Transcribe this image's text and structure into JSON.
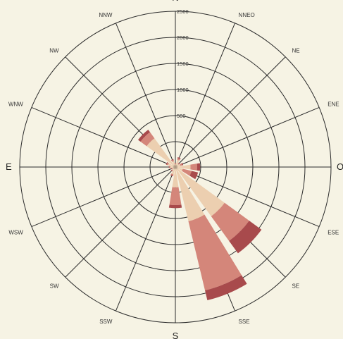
{
  "chart_data": {
    "type": "wind-rose",
    "directions": [
      "N",
      "NNEO",
      "NE",
      "ENE",
      "O",
      "ESE",
      "SE",
      "SSE",
      "S",
      "SSW",
      "SW",
      "WSW",
      "E",
      "WNW",
      "NW",
      "NNW"
    ],
    "radial_ticks": [
      "500",
      "1000",
      "1500",
      "2000",
      "2500"
    ],
    "series": [
      {
        "values": [
          50,
          150,
          80,
          100,
          300,
          150,
          1200,
          1100,
          400,
          150,
          80,
          60,
          100,
          150,
          700,
          120
        ]
      },
      {
        "values": [
          20,
          30,
          20,
          40,
          130,
          180,
          600,
          1400,
          350,
          30,
          20,
          20,
          20,
          30,
          150,
          30
        ]
      },
      {
        "values": [
          10,
          20,
          10,
          20,
          60,
          130,
          300,
          200,
          60,
          10,
          10,
          10,
          10,
          10,
          60,
          10
        ]
      }
    ],
    "colors": [
      "#eccfb0",
      "#d4867a",
      "#a84a4c"
    ]
  }
}
